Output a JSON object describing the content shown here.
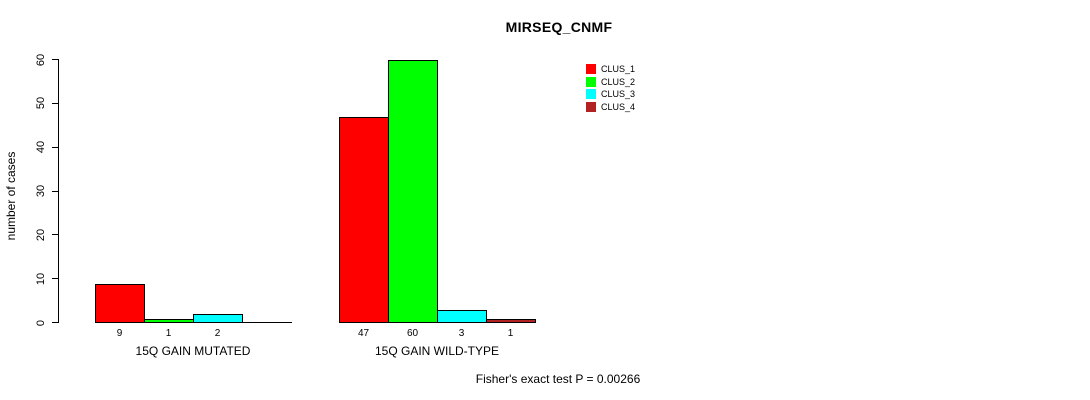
{
  "chart_data": {
    "type": "bar",
    "title": "MIRSEQ_CNMF",
    "ylabel": "number of cases",
    "ylim": [
      0,
      60
    ],
    "yticks": [
      0,
      10,
      20,
      30,
      40,
      50,
      60
    ],
    "grid": false,
    "legend_position": "top-right",
    "footer": "Fisher's exact test P = 0.00266",
    "series": [
      {
        "name": "CLUS_1",
        "color": "#FF0000"
      },
      {
        "name": "CLUS_2",
        "color": "#00FF00"
      },
      {
        "name": "CLUS_3",
        "color": "#00FFFF"
      },
      {
        "name": "CLUS_4",
        "color": "#B22222"
      }
    ],
    "groups": [
      {
        "label": "15Q GAIN MUTATED",
        "values": [
          9,
          1,
          2,
          0
        ],
        "value_labels": [
          "9",
          "1",
          "2",
          ""
        ]
      },
      {
        "label": "15Q GAIN WILD-TYPE",
        "values": [
          47,
          60,
          3,
          1
        ],
        "value_labels": [
          "47",
          "60",
          "3",
          "1"
        ]
      }
    ]
  }
}
